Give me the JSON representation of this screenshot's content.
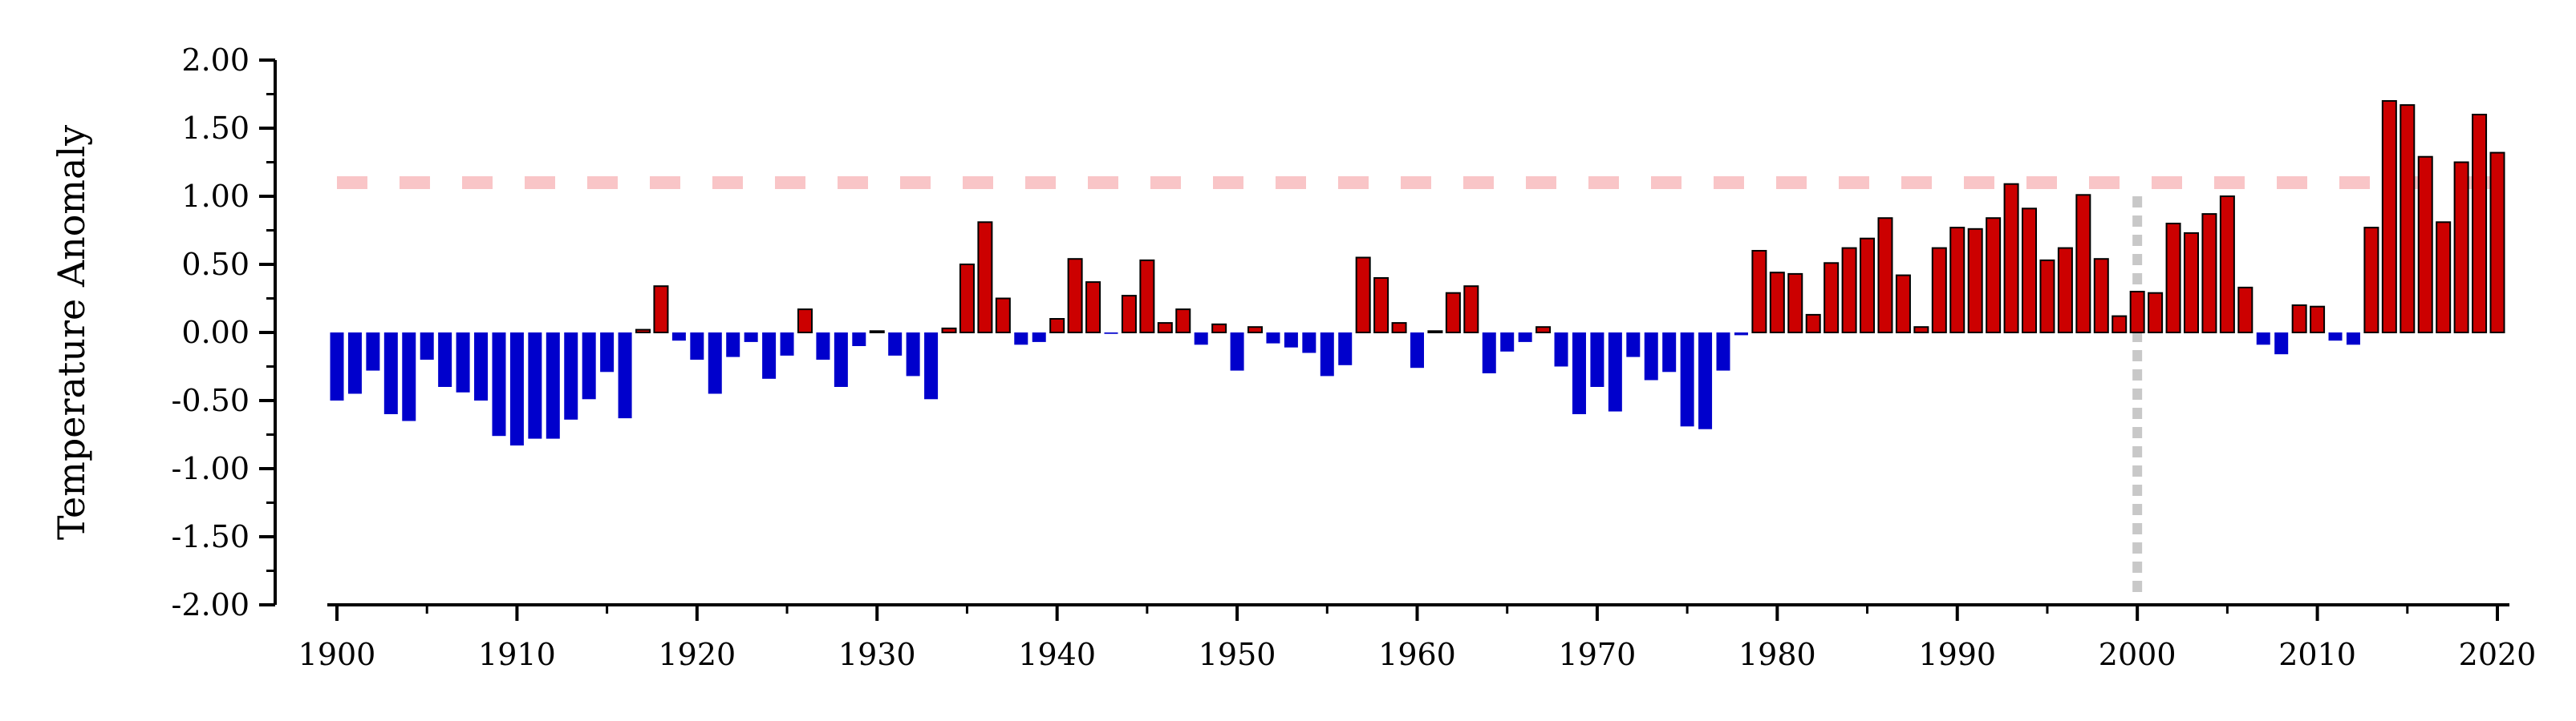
{
  "chart_data": {
    "type": "bar",
    "title": "",
    "xlabel": "",
    "ylabel": "Temperature Anomaly",
    "xlim": [
      1900,
      2020
    ],
    "ylim": [
      -2.0,
      2.0
    ],
    "x_ticks": [
      "1900",
      "1910",
      "1920",
      "1930",
      "1940",
      "1950",
      "1960",
      "1970",
      "1980",
      "1990",
      "2000",
      "2010",
      "2020"
    ],
    "y_ticks": [
      "2.00",
      "1.50",
      "1.00",
      "0.50",
      "0.00",
      "-0.50",
      "-1.00",
      "-1.50",
      "-2.00"
    ],
    "grid": false,
    "legend": "none",
    "colors": {
      "positive": "#cc0000",
      "negative": "#0000cc",
      "reference_line": "#f9c5c7",
      "marker_line": "#c8c8c8"
    },
    "reference_line_y": 1.1,
    "marker_line_x": 2000,
    "x": [
      1900,
      1901,
      1902,
      1903,
      1904,
      1905,
      1906,
      1907,
      1908,
      1909,
      1910,
      1911,
      1912,
      1913,
      1914,
      1915,
      1916,
      1917,
      1918,
      1919,
      1920,
      1921,
      1922,
      1923,
      1924,
      1925,
      1926,
      1927,
      1928,
      1929,
      1930,
      1931,
      1932,
      1933,
      1934,
      1935,
      1936,
      1937,
      1938,
      1939,
      1940,
      1941,
      1942,
      1943,
      1944,
      1945,
      1946,
      1947,
      1948,
      1949,
      1950,
      1951,
      1952,
      1953,
      1954,
      1955,
      1956,
      1957,
      1958,
      1959,
      1960,
      1961,
      1962,
      1963,
      1964,
      1965,
      1966,
      1967,
      1968,
      1969,
      1970,
      1971,
      1972,
      1973,
      1974,
      1975,
      1976,
      1977,
      1978,
      1979,
      1980,
      1981,
      1982,
      1983,
      1984,
      1985,
      1986,
      1987,
      1988,
      1989,
      1990,
      1991,
      1992,
      1993,
      1994,
      1995,
      1996,
      1997,
      1998,
      1999,
      2000,
      2001,
      2002,
      2003,
      2004,
      2005,
      2006,
      2007,
      2008,
      2009,
      2010,
      2011,
      2012,
      2013,
      2014,
      2015,
      2016,
      2017,
      2018,
      2019,
      2020
    ],
    "values": [
      -0.5,
      -0.45,
      -0.28,
      -0.6,
      -0.65,
      -0.2,
      -0.4,
      -0.44,
      -0.5,
      -0.76,
      -0.83,
      -0.78,
      -0.78,
      -0.64,
      -0.49,
      -0.29,
      -0.63,
      0.02,
      0.34,
      -0.06,
      -0.2,
      -0.45,
      -0.18,
      -0.07,
      -0.34,
      -0.17,
      0.17,
      -0.2,
      -0.4,
      -0.1,
      0.01,
      -0.17,
      -0.32,
      -0.49,
      0.03,
      0.5,
      0.81,
      0.25,
      -0.09,
      -0.07,
      0.1,
      0.54,
      0.37,
      -0.01,
      0.27,
      0.53,
      0.07,
      0.17,
      -0.09,
      0.06,
      -0.28,
      0.04,
      -0.08,
      -0.11,
      -0.15,
      -0.32,
      -0.24,
      0.55,
      0.4,
      0.07,
      -0.26,
      0.01,
      0.29,
      0.34,
      -0.3,
      -0.14,
      -0.07,
      0.04,
      -0.25,
      -0.6,
      -0.4,
      -0.58,
      -0.18,
      -0.35,
      -0.29,
      -0.69,
      -0.71,
      -0.28,
      -0.02,
      0.6,
      0.44,
      0.43,
      0.13,
      0.51,
      0.62,
      0.69,
      0.84,
      0.42,
      0.04,
      0.62,
      0.77,
      0.76,
      0.84,
      1.09,
      0.91,
      0.53,
      0.62,
      1.01,
      0.54,
      0.12,
      0.3,
      0.29,
      0.8,
      0.73,
      0.87,
      1.0,
      0.33,
      -0.09,
      -0.16,
      0.2,
      0.19,
      -0.06,
      -0.09,
      0.77,
      1.7,
      1.67,
      1.29,
      0.81,
      1.25,
      1.6,
      1.32
    ]
  }
}
